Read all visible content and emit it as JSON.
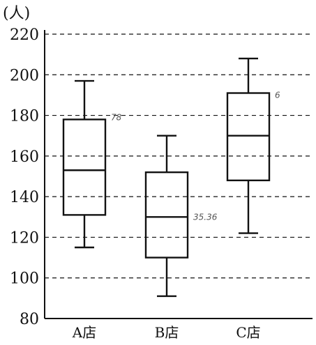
{
  "chart_data": {
    "type": "boxplot",
    "unit_label": "(人)",
    "ylim": [
      80,
      220
    ],
    "yticks": [
      80,
      100,
      120,
      140,
      160,
      180,
      200,
      220
    ],
    "grid": true,
    "categories": [
      "A店",
      "B店",
      "C店"
    ],
    "boxes": [
      {
        "category": "A店",
        "min": 115,
        "q1": 131,
        "median": 153,
        "q3": 178,
        "max": 197
      },
      {
        "category": "B店",
        "min": 91,
        "q1": 110,
        "median": 130,
        "q3": 152,
        "max": 170
      },
      {
        "category": "C店",
        "min": 122,
        "q1": 148,
        "median": 170,
        "q3": 191,
        "max": 208
      }
    ],
    "annotations": [
      {
        "text": "78",
        "category": "A店",
        "y": 179
      },
      {
        "text": "35.36",
        "category": "B店",
        "y": 130
      },
      {
        "text": "6",
        "category": "C店",
        "y": 190
      }
    ]
  }
}
